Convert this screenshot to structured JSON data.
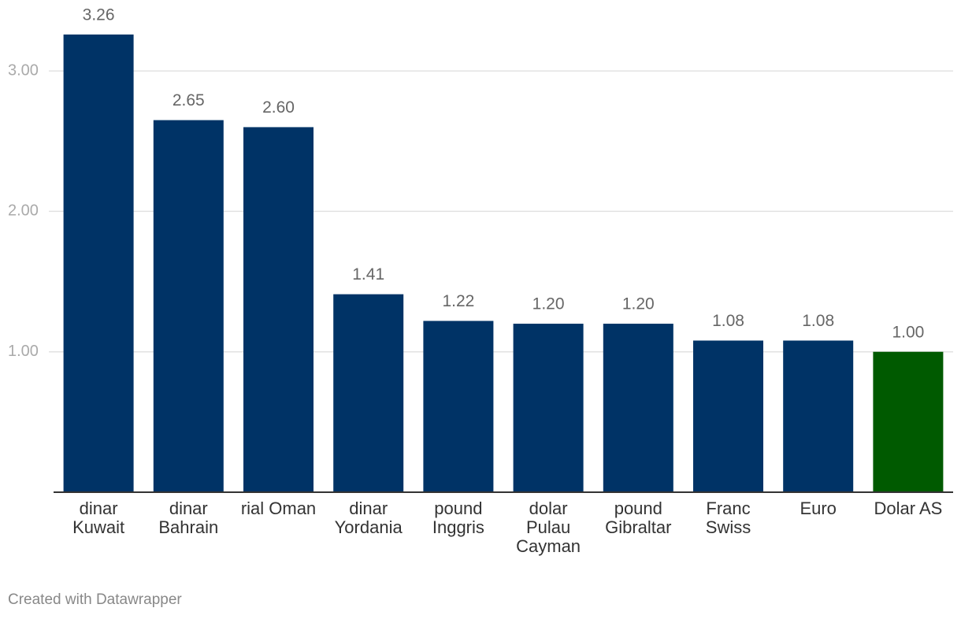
{
  "chart_data": {
    "type": "bar",
    "categories": [
      "dinar Kuwait",
      "dinar Bahrain",
      "rial Oman",
      "dinar Yordania",
      "pound Inggris",
      "dolar Pulau Cayman",
      "pound Gibraltar",
      "Franc Swiss",
      "Euro",
      "Dolar AS"
    ],
    "values": [
      3.26,
      2.65,
      2.6,
      1.41,
      1.22,
      1.2,
      1.2,
      1.08,
      1.08,
      1.0
    ],
    "value_labels": [
      "3.26",
      "2.65",
      "2.60",
      "1.41",
      "1.22",
      "1.20",
      "1.20",
      "1.08",
      "1.08",
      "1.00"
    ],
    "colors": [
      "#003366",
      "#003366",
      "#003366",
      "#003366",
      "#003366",
      "#003366",
      "#003366",
      "#003366",
      "#003366",
      "#005a00"
    ],
    "ylim": [
      0,
      3.5
    ],
    "yticks": [
      {
        "value": 1,
        "label": "1.00"
      },
      {
        "value": 2,
        "label": "2.00"
      },
      {
        "value": 3,
        "label": "3.00"
      }
    ],
    "grid": true,
    "note": "Created with Datawrapper"
  }
}
